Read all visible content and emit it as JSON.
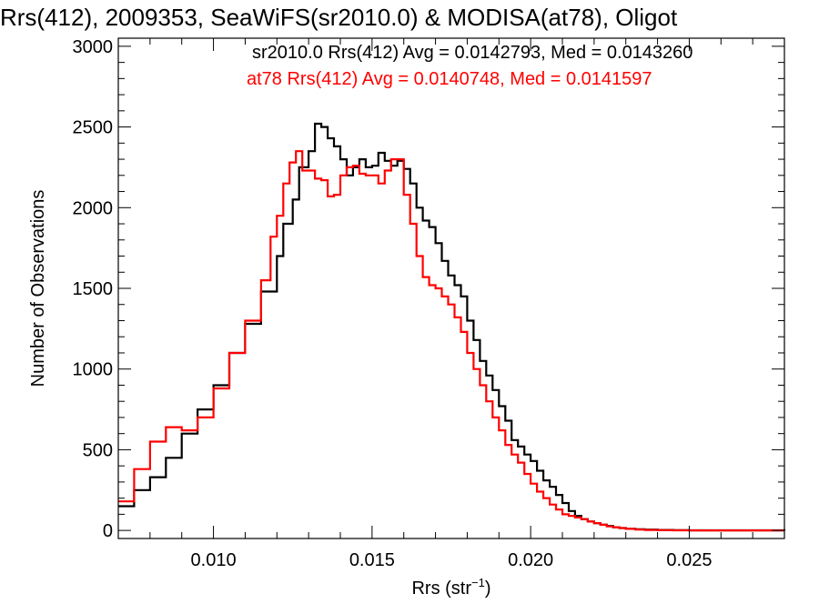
{
  "chart_data": {
    "type": "line",
    "title": "Rrs(412), 2009353, SeaWiFS(sr2010.0) & MODISA(at78), Oligot",
    "xlabel": "Rrs (str",
    "xlabel_sup": "−1",
    "xlabel_suffix": ")",
    "ylabel": "Number of Observations",
    "xlim": [
      0.007,
      0.028
    ],
    "ylim": [
      -50,
      3050
    ],
    "xticks": [
      0.01,
      0.015,
      0.02,
      0.025
    ],
    "xtick_labels": [
      "0.010",
      "0.015",
      "0.020",
      "0.025"
    ],
    "yticks": [
      0,
      500,
      1000,
      1500,
      2000,
      2500,
      3000
    ],
    "ytick_labels": [
      "0",
      "500",
      "1000",
      "1500",
      "2000",
      "2500",
      "3000"
    ],
    "annotations": [
      {
        "text": "sr2010.0 Rrs(412) Avg = 0.0142793, Med = 0.0143260",
        "color": "#000000"
      },
      {
        "text": "at78 Rrs(412) Avg = 0.0140748, Med = 0.0141597",
        "color": "#ff0000"
      }
    ],
    "series": [
      {
        "color": "#000000",
        "x": [
          0.007,
          0.0075,
          0.008,
          0.0085,
          0.009,
          0.0095,
          0.01,
          0.0105,
          0.011,
          0.0115,
          0.012,
          0.0122,
          0.0125,
          0.0127,
          0.013,
          0.0132,
          0.0134,
          0.0136,
          0.0138,
          0.014,
          0.0142,
          0.0144,
          0.0146,
          0.0148,
          0.015,
          0.0152,
          0.0154,
          0.0156,
          0.0158,
          0.016,
          0.0162,
          0.0164,
          0.0166,
          0.0168,
          0.017,
          0.0172,
          0.0174,
          0.0176,
          0.0178,
          0.018,
          0.0182,
          0.0184,
          0.0186,
          0.0188,
          0.019,
          0.0192,
          0.0194,
          0.0196,
          0.0198,
          0.02,
          0.0202,
          0.0204,
          0.0206,
          0.0208,
          0.021,
          0.0212,
          0.0214,
          0.0216,
          0.0218,
          0.022,
          0.0222,
          0.0224,
          0.0226,
          0.0228,
          0.023,
          0.0233,
          0.0236,
          0.024,
          0.0245,
          0.025,
          0.026,
          0.027,
          0.028
        ],
        "values": [
          150,
          250,
          330,
          450,
          600,
          750,
          900,
          1100,
          1280,
          1480,
          1700,
          1900,
          2050,
          2250,
          2350,
          2520,
          2500,
          2430,
          2380,
          2300,
          2200,
          2250,
          2300,
          2250,
          2260,
          2340,
          2290,
          2260,
          2290,
          2240,
          2150,
          2000,
          1920,
          1880,
          1780,
          1670,
          1580,
          1520,
          1450,
          1300,
          1180,
          1050,
          960,
          870,
          770,
          680,
          560,
          520,
          470,
          430,
          370,
          310,
          270,
          220,
          170,
          120,
          90,
          70,
          55,
          45,
          35,
          28,
          20,
          15,
          10,
          7,
          5,
          3,
          2,
          1,
          1,
          1,
          0
        ]
      },
      {
        "color": "#ff0000",
        "x": [
          0.007,
          0.0075,
          0.008,
          0.0085,
          0.009,
          0.0095,
          0.01,
          0.0105,
          0.011,
          0.0115,
          0.0118,
          0.012,
          0.0122,
          0.0124,
          0.0126,
          0.0128,
          0.013,
          0.0132,
          0.0134,
          0.0136,
          0.0138,
          0.014,
          0.0142,
          0.0144,
          0.0146,
          0.0148,
          0.015,
          0.0152,
          0.0154,
          0.0156,
          0.0158,
          0.016,
          0.0162,
          0.0164,
          0.0166,
          0.0168,
          0.017,
          0.0172,
          0.0174,
          0.0176,
          0.0178,
          0.018,
          0.0182,
          0.0184,
          0.0186,
          0.0188,
          0.019,
          0.0192,
          0.0194,
          0.0196,
          0.0198,
          0.02,
          0.0202,
          0.0204,
          0.0206,
          0.0208,
          0.021,
          0.0212,
          0.0214,
          0.0216,
          0.0218,
          0.022,
          0.0222,
          0.0224,
          0.0226,
          0.0228,
          0.023,
          0.0233,
          0.0236,
          0.024,
          0.0245,
          0.025,
          0.026,
          0.027,
          0.028
        ],
        "values": [
          180,
          380,
          550,
          640,
          620,
          700,
          880,
          1100,
          1300,
          1550,
          1820,
          1950,
          2150,
          2280,
          2350,
          2230,
          2230,
          2180,
          2170,
          2070,
          2080,
          2200,
          2250,
          2260,
          2210,
          2200,
          2200,
          2150,
          2230,
          2300,
          2300,
          2080,
          1900,
          1700,
          1570,
          1520,
          1500,
          1450,
          1400,
          1320,
          1230,
          1100,
          1000,
          900,
          800,
          700,
          620,
          530,
          470,
          420,
          350,
          290,
          240,
          200,
          160,
          130,
          100,
          90,
          80,
          70,
          55,
          45,
          35,
          25,
          20,
          15,
          10,
          5,
          3,
          2,
          1,
          0,
          0,
          0,
          0
        ]
      }
    ]
  }
}
